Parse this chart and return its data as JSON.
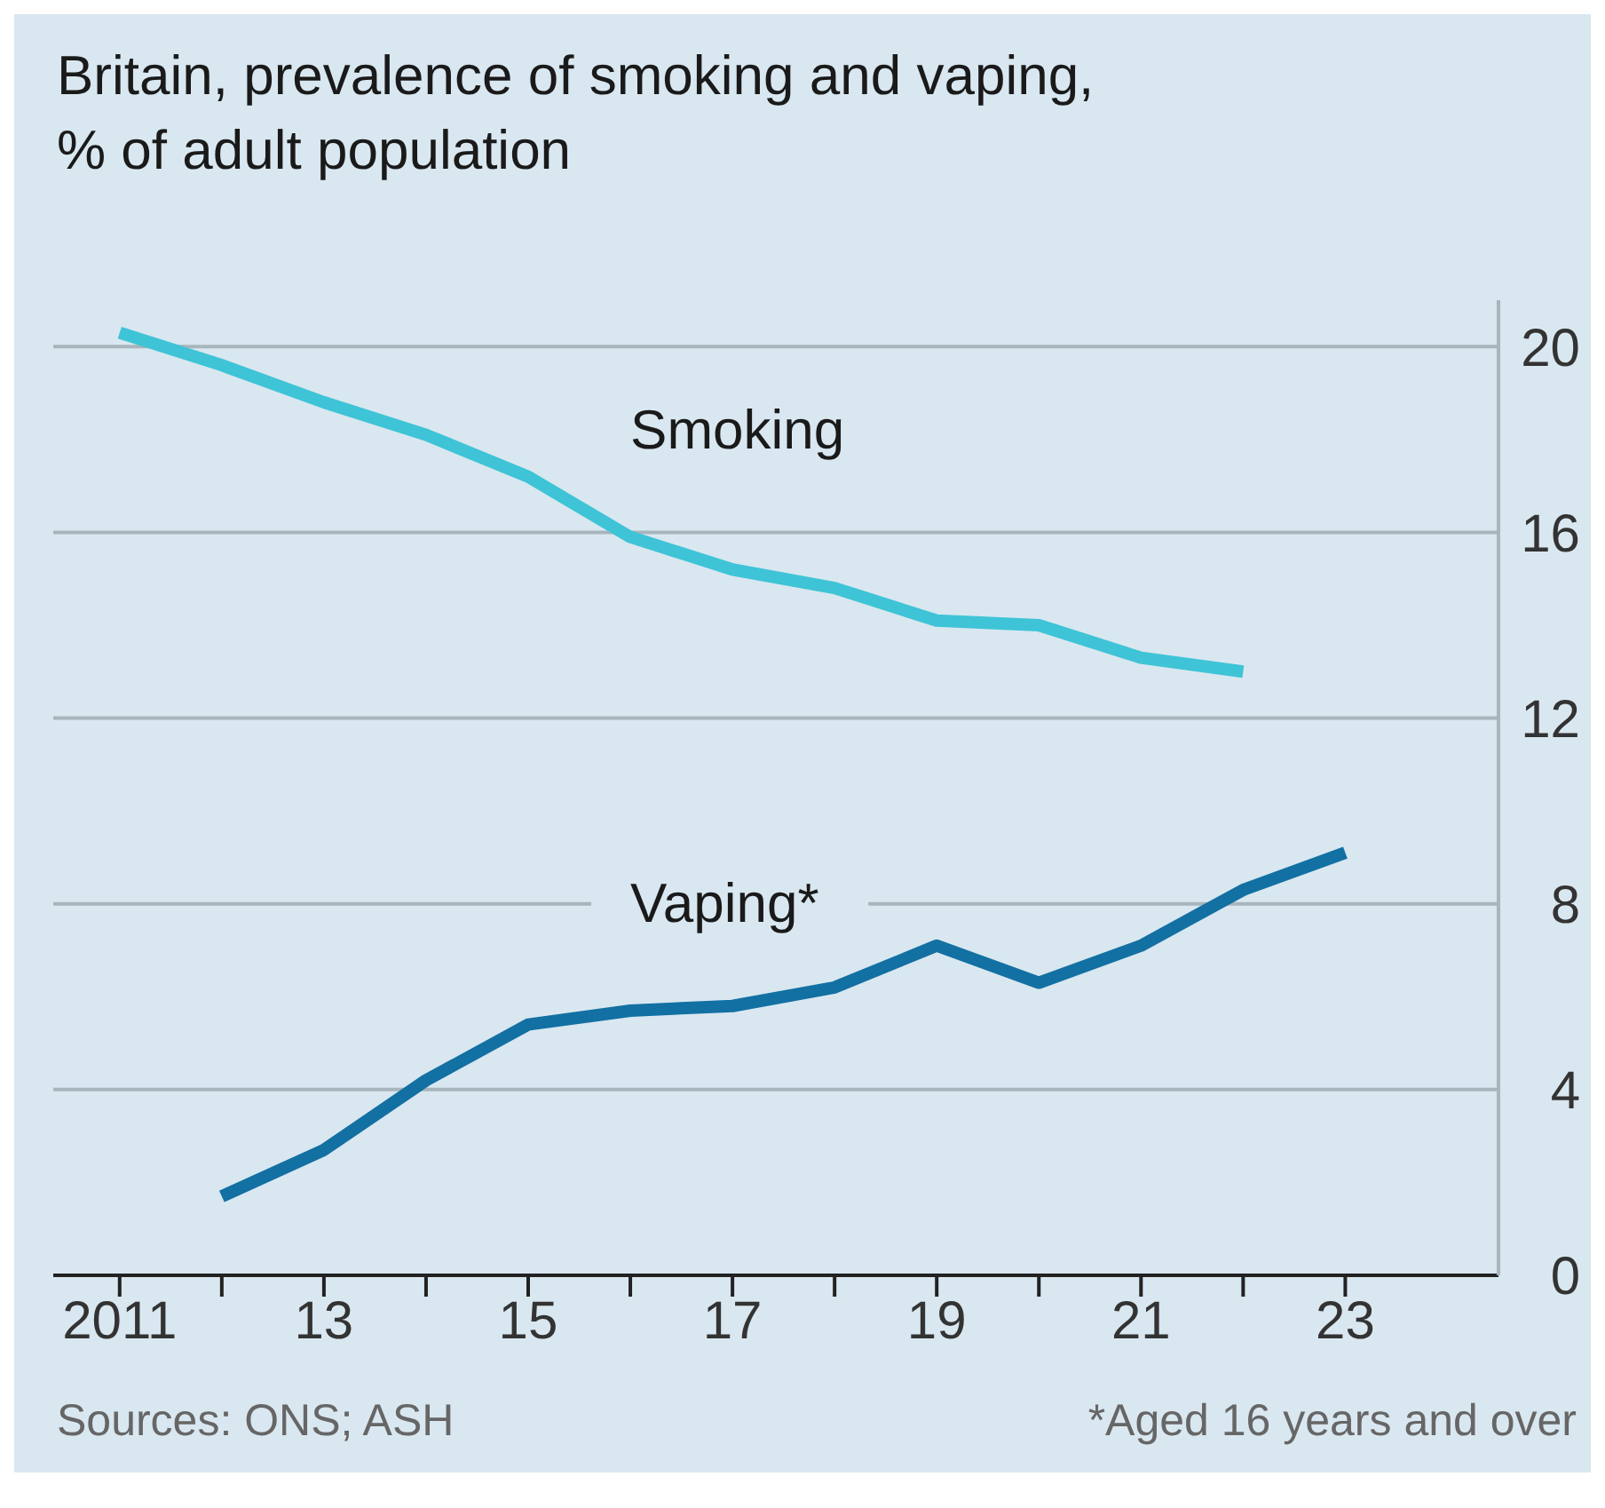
{
  "chart_data": {
    "type": "line",
    "title": "Britain, prevalence of smoking and vaping,\n% of adult population",
    "x": [
      2011,
      2012,
      2013,
      2014,
      2015,
      2016,
      2017,
      2018,
      2019,
      2020,
      2021,
      2022,
      2023
    ],
    "series": [
      {
        "name": "Smoking",
        "color": "#3ec4d6",
        "values": [
          20.3,
          19.6,
          18.8,
          18.1,
          17.2,
          15.9,
          15.2,
          14.8,
          14.1,
          14.0,
          13.3,
          13.0,
          null
        ]
      },
      {
        "name": "Vaping*",
        "color": "#1270a3",
        "values": [
          null,
          1.7,
          2.7,
          4.2,
          5.4,
          5.7,
          5.8,
          6.2,
          7.1,
          6.3,
          7.1,
          8.3,
          9.1
        ]
      }
    ],
    "xlim": [
      2010.35,
      2024.5
    ],
    "xticks": [
      {
        "value": 2011,
        "label": "2011"
      },
      {
        "value": 2012,
        "label": null
      },
      {
        "value": 2013,
        "label": "13"
      },
      {
        "value": 2014,
        "label": null
      },
      {
        "value": 2015,
        "label": "15"
      },
      {
        "value": 2016,
        "label": null
      },
      {
        "value": 2017,
        "label": "17"
      },
      {
        "value": 2018,
        "label": null
      },
      {
        "value": 2019,
        "label": "19"
      },
      {
        "value": 2020,
        "label": null
      },
      {
        "value": 2021,
        "label": "21"
      },
      {
        "value": 2022,
        "label": null
      },
      {
        "value": 2023,
        "label": "23"
      }
    ],
    "ylim": [
      0,
      21
    ],
    "yticks": [
      0,
      4,
      8,
      12,
      16,
      20
    ],
    "grid": "y",
    "legend": false,
    "marker": "none",
    "line_style": "solid",
    "annotations": [
      "Sources: ONS; ASH",
      "*Aged 16 years and over"
    ]
  }
}
